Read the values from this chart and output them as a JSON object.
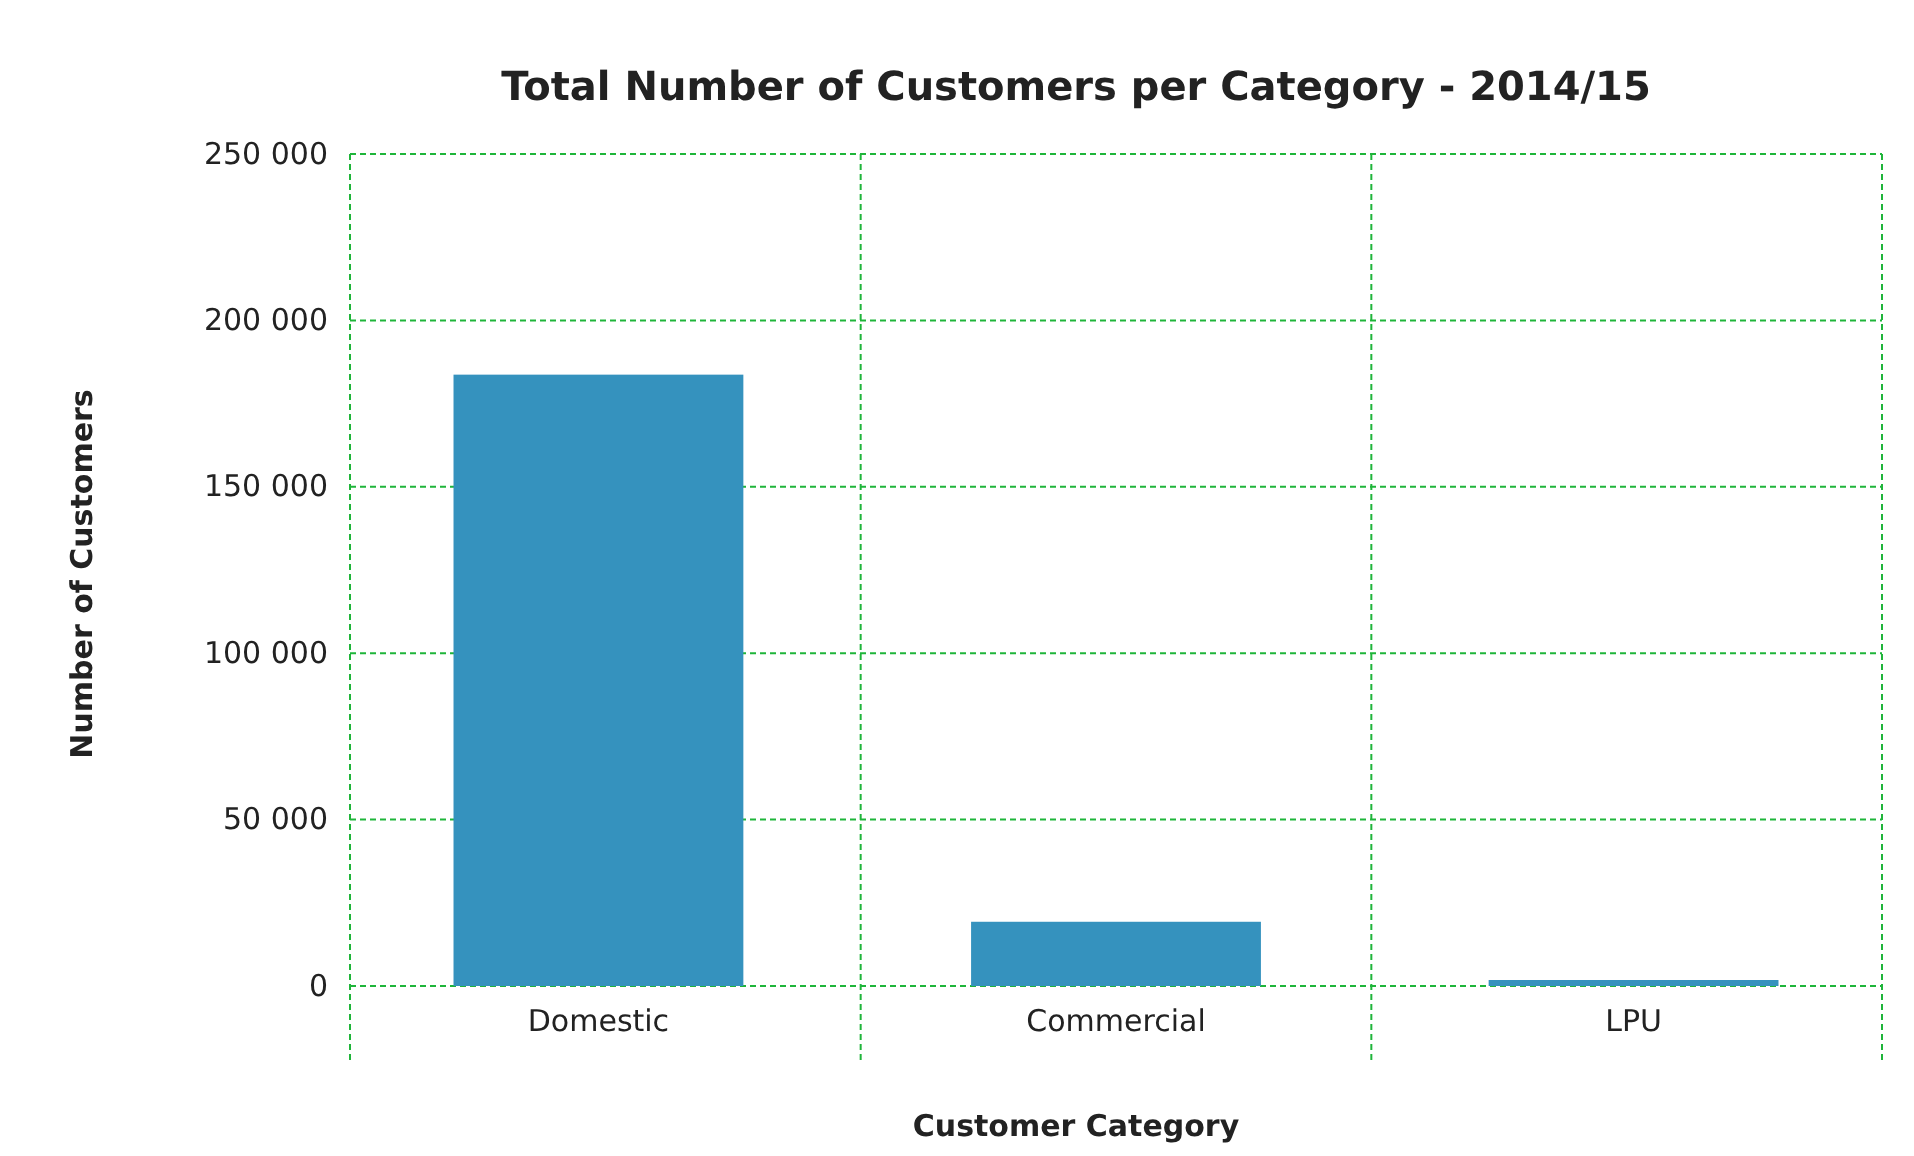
{
  "chart_data": {
    "type": "bar",
    "title": "Total Number of Customers per Category - 2014/15",
    "xlabel": "Customer Category",
    "ylabel": "Number of Customers",
    "categories": [
      "Domestic",
      "Commercial",
      "LPU"
    ],
    "series": [
      {
        "color": "#3592be",
        "values": [
          183700,
          19300,
          1800
        ]
      }
    ],
    "ylim": [
      0,
      250000
    ],
    "yticks": [
      {
        "value": 0,
        "label": "0"
      },
      {
        "value": 50000,
        "label": "50 000"
      },
      {
        "value": 100000,
        "label": "100 000"
      },
      {
        "value": 150000,
        "label": "150 000"
      },
      {
        "value": 200000,
        "label": "200 000"
      },
      {
        "value": 250000,
        "label": "250 000"
      }
    ],
    "grid": true
  }
}
